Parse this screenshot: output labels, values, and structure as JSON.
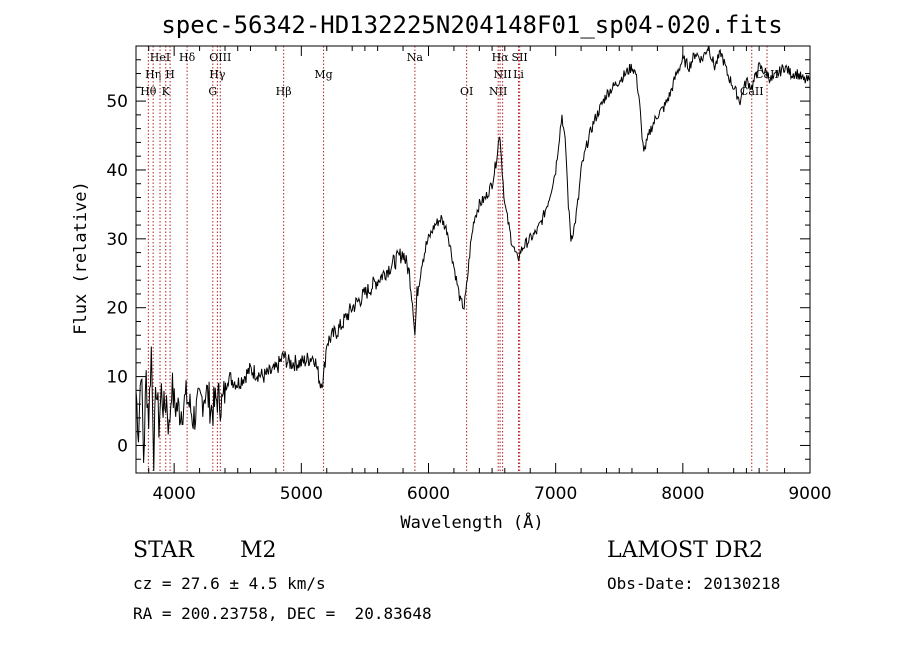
{
  "chart_data": {
    "type": "line",
    "title": "spec-56342-HD132225N204148F01_sp04-020.fits",
    "xlabel": "Wavelength (Å)",
    "ylabel": "Flux (relative)",
    "xlim": [
      3700,
      9000
    ],
    "ylim": [
      -4,
      58
    ],
    "x_ticks": [
      4000,
      5000,
      6000,
      7000,
      8000,
      9000
    ],
    "y_ticks": [
      0,
      10,
      20,
      30,
      40,
      50
    ],
    "grid": false,
    "colors": {
      "spectrum": "#000000",
      "line_markers": "#b22222"
    },
    "series": [
      {
        "x": [
          3700,
          3720,
          3740,
          3760,
          3780,
          3800,
          3820,
          3840,
          3860,
          3880,
          3900,
          3920,
          3940,
          3960,
          3980,
          4000,
          4050,
          4100,
          4150,
          4200,
          4250,
          4300,
          4340,
          4380,
          4420,
          4500,
          4600,
          4700,
          4800,
          4860,
          4900,
          5000,
          5100,
          5150,
          5175,
          5200,
          5300,
          5400,
          5500,
          5600,
          5700,
          5800,
          5850,
          5880,
          5893,
          5910,
          5950,
          6000,
          6050,
          6100,
          6150,
          6200,
          6250,
          6280,
          6300,
          6330,
          6360,
          6400,
          6450,
          6500,
          6530,
          6550,
          6563,
          6580,
          6600,
          6620,
          6650,
          6680,
          6700,
          6720,
          6750,
          6800,
          6850,
          6900,
          6950,
          7000,
          7030,
          7050,
          7080,
          7100,
          7120,
          7150,
          7180,
          7200,
          7250,
          7300,
          7400,
          7500,
          7550,
          7600,
          7630,
          7660,
          7680,
          7700,
          7750,
          7800,
          7850,
          7900,
          7950,
          8000,
          8050,
          8100,
          8150,
          8200,
          8250,
          8300,
          8350,
          8400,
          8450,
          8500,
          8542,
          8600,
          8662,
          8700,
          8750,
          8800,
          8850,
          8900,
          8950,
          9000
        ],
        "y": [
          8,
          2,
          12,
          -2,
          10,
          4,
          14,
          -1,
          9,
          3,
          8,
          5,
          7,
          2,
          9,
          6,
          5,
          7,
          4,
          6,
          8,
          5,
          7,
          6,
          10,
          9,
          11,
          10,
          11,
          13,
          12,
          12,
          13,
          9,
          10,
          15,
          17,
          20,
          22,
          24,
          26,
          28,
          25,
          20,
          16,
          22,
          27,
          30,
          32,
          33,
          31,
          26,
          21,
          20,
          23,
          29,
          33,
          35,
          36,
          38,
          41,
          44,
          45,
          40,
          35,
          33,
          30,
          28,
          27,
          28,
          29,
          30,
          31,
          33,
          36,
          40,
          45,
          48,
          43,
          35,
          30,
          32,
          36,
          40,
          44,
          47,
          51,
          53,
          54,
          55,
          54,
          50,
          44,
          43,
          46,
          48,
          49,
          51,
          54,
          56,
          55,
          57,
          56,
          58,
          55,
          57,
          54,
          52,
          50,
          53,
          52,
          55,
          54,
          53,
          54,
          55,
          54,
          54,
          53,
          53
        ]
      }
    ],
    "lines": [
      {
        "name": "Hθ",
        "wl": 3797,
        "row": 3
      },
      {
        "name": "Hη",
        "wl": 3835,
        "row": 2
      },
      {
        "name": "HeI",
        "wl": 3889,
        "row": 1
      },
      {
        "name": "K",
        "wl": 3934,
        "row": 3
      },
      {
        "name": "H",
        "wl": 3968,
        "row": 2
      },
      {
        "name": "Hδ",
        "wl": 4102,
        "row": 1
      },
      {
        "name": "G",
        "wl": 4304,
        "row": 3
      },
      {
        "name": "Hγ",
        "wl": 4340,
        "row": 2
      },
      {
        "name": "OIII",
        "wl": 4363,
        "row": 1
      },
      {
        "name": "Hβ",
        "wl": 4861,
        "row": 3
      },
      {
        "name": "Mg",
        "wl": 5175,
        "row": 2
      },
      {
        "name": "Na",
        "wl": 5893,
        "row": 1
      },
      {
        "name": "OI",
        "wl": 6300,
        "row": 3
      },
      {
        "name": "NII",
        "wl": 6548,
        "row": 3
      },
      {
        "name": "Hα",
        "wl": 6563,
        "row": 1
      },
      {
        "name": "NII",
        "wl": 6583,
        "row": 2
      },
      {
        "name": "SII",
        "wl": 6717,
        "row": 1
      },
      {
        "name": "Li",
        "wl": 6708,
        "row": 2
      },
      {
        "name": "CaII",
        "wl": 8542,
        "row": 3
      },
      {
        "name": "CaII",
        "wl": 8662,
        "row": 2
      }
    ]
  },
  "info": {
    "object_class": "STAR",
    "subclass": "M2",
    "survey": "LAMOST DR2",
    "cz": "cz = 27.6 ± 4.5 km/s",
    "obs_date": "Obs-Date: 20130218",
    "coords": "RA = 200.23758, DEC =  20.83648"
  }
}
